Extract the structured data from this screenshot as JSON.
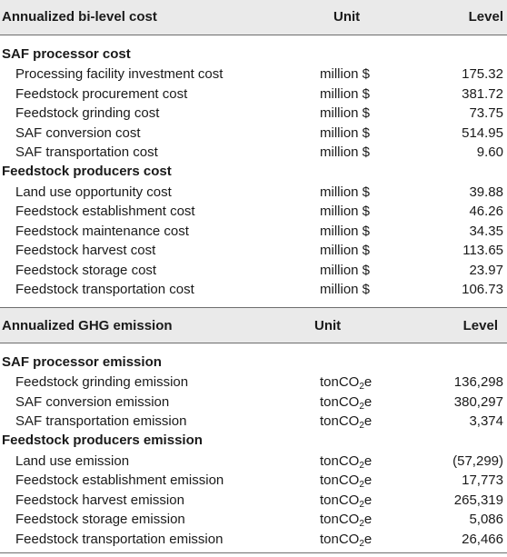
{
  "cost_table": {
    "header": {
      "col1": "Annualized bi-level cost",
      "col2": "Unit",
      "col3": "Level"
    },
    "groups": [
      {
        "title": "SAF processor cost",
        "rows": [
          {
            "label": "Processing facility investment cost",
            "unit": "million $",
            "level": "175.32"
          },
          {
            "label": "Feedstock procurement cost",
            "unit": "million $",
            "level": "381.72"
          },
          {
            "label": "Feedstock grinding cost",
            "unit": "million $",
            "level": "73.75"
          },
          {
            "label": "SAF conversion cost",
            "unit": "million $",
            "level": "514.95"
          },
          {
            "label": "SAF transportation cost",
            "unit": "million $",
            "level": "9.60"
          }
        ]
      },
      {
        "title": "Feedstock producers cost",
        "rows": [
          {
            "label": "Land use opportunity cost",
            "unit": "million $",
            "level": "39.88"
          },
          {
            "label": "Feedstock establishment cost",
            "unit": "million $",
            "level": "46.26"
          },
          {
            "label": "Feedstock maintenance cost",
            "unit": "million $",
            "level": "34.35"
          },
          {
            "label": "Feedstock harvest cost",
            "unit": "million $",
            "level": "113.65"
          },
          {
            "label": "Feedstock storage cost",
            "unit": "million $",
            "level": "23.97"
          },
          {
            "label": "Feedstock transportation cost",
            "unit": "million $",
            "level": "106.73"
          }
        ]
      }
    ]
  },
  "emission_table": {
    "header": {
      "col1": "Annualized GHG emission",
      "col2": "Unit",
      "col3": "Level"
    },
    "unit_parts": {
      "pre": "tonCO",
      "sub": "2",
      "post": "e"
    },
    "groups": [
      {
        "title": "SAF processor emission",
        "rows": [
          {
            "label": "Feedstock grinding emission",
            "level": "136,298"
          },
          {
            "label": "SAF conversion emission",
            "level": "380,297"
          },
          {
            "label": "SAF transportation emission",
            "level": "3,374"
          }
        ]
      },
      {
        "title": "Feedstock producers emission",
        "rows": [
          {
            "label": "Land use emission",
            "level": "(57,299)"
          },
          {
            "label": "Feedstock establishment emission",
            "level": "17,773"
          },
          {
            "label": "Feedstock harvest emission",
            "level": "265,319"
          },
          {
            "label": "Feedstock storage emission",
            "level": "5,086"
          },
          {
            "label": "Feedstock transportation emission",
            "level": "26,466"
          }
        ]
      }
    ]
  },
  "colors": {
    "header_bg": "#eaeaea",
    "rule": "#6d6d6d",
    "text": "#1a1a1a"
  }
}
